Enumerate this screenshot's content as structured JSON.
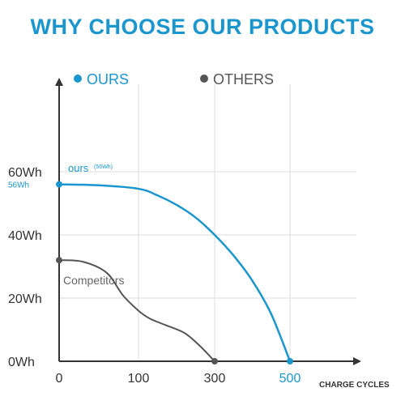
{
  "page": {
    "title": "WHY CHOOSE OUR PRODUCTS"
  },
  "colors": {
    "ours": "#1a96cf",
    "others": "#555555",
    "axis": "#333333",
    "grid": "#dddddd",
    "competitor_label": "#666666"
  },
  "chart_data": {
    "type": "line",
    "title": "WHY CHOOSE OUR PRODUCTS",
    "xlabel": "CHARGE CYCLES",
    "ylabel": "",
    "x_ticks": [
      {
        "value": 0,
        "label": "0"
      },
      {
        "value": 100,
        "label": "100"
      },
      {
        "value": 300,
        "label": "300"
      },
      {
        "value": 500,
        "label": "500"
      }
    ],
    "y_ticks": [
      {
        "value": 0,
        "label": "0Wh"
      },
      {
        "value": 20,
        "label": "20Wh"
      },
      {
        "value": 40,
        "label": "40Wh"
      },
      {
        "value": 60,
        "label": "60Wh"
      }
    ],
    "y_marker": {
      "value": 56,
      "label": "56Wh"
    },
    "xlim": [
      0,
      500
    ],
    "ylim": [
      0,
      60
    ],
    "grid": true,
    "legend": {
      "placement": "top",
      "entries": [
        {
          "name": "OURS",
          "color": "#1a96cf"
        },
        {
          "name": "OTHERS",
          "color": "#555555"
        }
      ]
    },
    "series": [
      {
        "name": "OURS",
        "color": "#1a96cf",
        "annotation": "ours",
        "annotation_detail": "(56Wh)",
        "points": [
          [
            0,
            56
          ],
          [
            50,
            55.7
          ],
          [
            100,
            54.6
          ],
          [
            150,
            52.5
          ],
          [
            200,
            49.5
          ],
          [
            250,
            45.5
          ],
          [
            300,
            40
          ],
          [
            350,
            33.5
          ],
          [
            400,
            25.5
          ],
          [
            450,
            15
          ],
          [
            500,
            0
          ]
        ]
      },
      {
        "name": "OTHERS",
        "color": "#555555",
        "annotation": "Competitors",
        "points": [
          [
            0,
            32
          ],
          [
            30,
            31.5
          ],
          [
            60,
            28
          ],
          [
            80,
            21
          ],
          [
            100,
            16
          ],
          [
            130,
            13.5
          ],
          [
            170,
            11.5
          ],
          [
            220,
            9
          ],
          [
            260,
            5
          ],
          [
            300,
            0
          ]
        ]
      }
    ]
  }
}
